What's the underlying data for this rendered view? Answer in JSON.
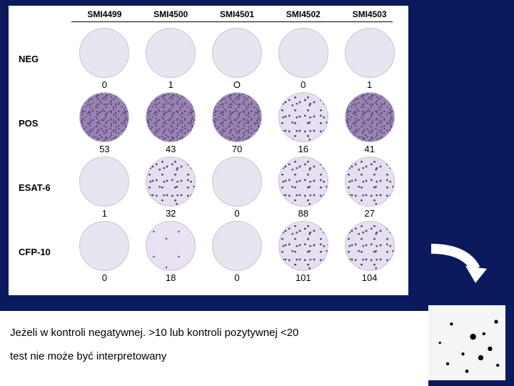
{
  "background_color": "#0a1a5c",
  "figure": {
    "columns": [
      "SMI4499",
      "SMI4500",
      "SMI4501",
      "SMI4502",
      "SMI4503"
    ],
    "rows": [
      {
        "label": "NEG",
        "wells": [
          {
            "value": "0",
            "density": "none"
          },
          {
            "value": "1",
            "density": "none"
          },
          {
            "value": "O",
            "density": "none"
          },
          {
            "value": "0",
            "density": "none"
          },
          {
            "value": "1",
            "density": "none"
          }
        ]
      },
      {
        "label": "POS",
        "wells": [
          {
            "value": "53",
            "density": "heavy"
          },
          {
            "value": "43",
            "density": "heavy"
          },
          {
            "value": "70",
            "density": "heavy"
          },
          {
            "value": "16",
            "density": "medium"
          },
          {
            "value": "41",
            "density": "heavy"
          }
        ]
      },
      {
        "label": "ESAT-6",
        "wells": [
          {
            "value": "1",
            "density": "none"
          },
          {
            "value": "32",
            "density": "medium"
          },
          {
            "value": "0",
            "density": "none"
          },
          {
            "value": "88",
            "density": "medium"
          },
          {
            "value": "27",
            "density": "medium"
          }
        ]
      },
      {
        "label": "CFP-10",
        "wells": [
          {
            "value": "0",
            "density": "none"
          },
          {
            "value": "18",
            "density": "sparse"
          },
          {
            "value": "0",
            "density": "none"
          },
          {
            "value": "101",
            "density": "medium"
          },
          {
            "value": "104",
            "density": "medium"
          }
        ]
      }
    ]
  },
  "text": {
    "line1": "Jeżeli w kontroli negatywnej. >10 lub kontroli pozytywnej <20",
    "line2": "test nie może być interpretowany"
  },
  "arrow_color": "#ffffff"
}
